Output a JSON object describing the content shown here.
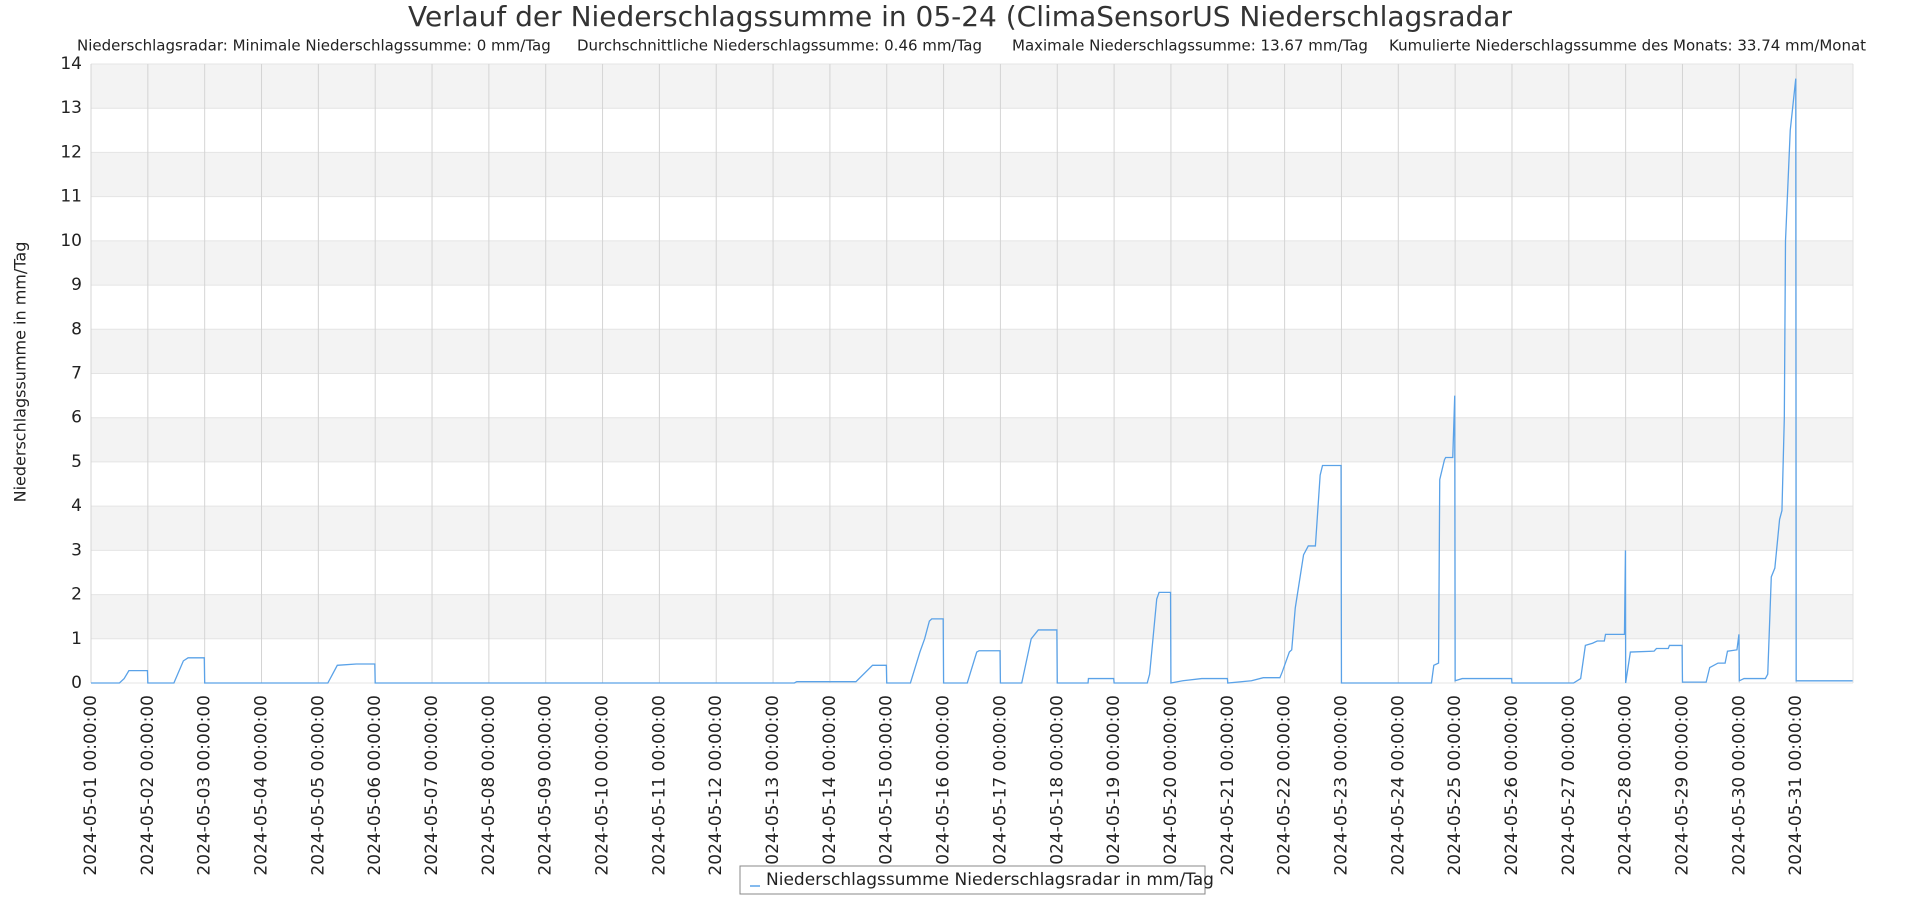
{
  "chart_data": {
    "type": "line",
    "title": "Verlauf der Niederschlagssumme in 05-24 (ClimaSensorUS Niederschlagsradar",
    "subtitle": [
      "Niederschlagsradar: Minimale Niederschlagssumme: 0 mm/Tag",
      "Durchschnittliche Niederschlagssumme: 0.46 mm/Tag",
      "Maximale Niederschlagssumme: 13.67 mm/Tag",
      "Kumulierte Niederschlagssumme des Monats: 33.74 mm/Monat"
    ],
    "y_label": "Niederschlagssumme in mm/Tag",
    "ylim": [
      0,
      14
    ],
    "yticks": [
      0,
      1,
      2,
      3,
      4,
      5,
      6,
      7,
      8,
      9,
      10,
      11,
      12,
      13,
      14
    ],
    "xlim": [
      "2024-05-01 00:00:00",
      "2024-06-01 00:00:00"
    ],
    "xticks": [
      "2024-05-01 00:00:00",
      "2024-05-02 00:00:00",
      "2024-05-03 00:00:00",
      "2024-05-04 00:00:00",
      "2024-05-05 00:00:00",
      "2024-05-06 00:00:00",
      "2024-05-07 00:00:00",
      "2024-05-08 00:00:00",
      "2024-05-09 00:00:00",
      "2024-05-10 00:00:00",
      "2024-05-11 00:00:00",
      "2024-05-12 00:00:00",
      "2024-05-13 00:00:00",
      "2024-05-14 00:00:00",
      "2024-05-15 00:00:00",
      "2024-05-16 00:00:00",
      "2024-05-17 00:00:00",
      "2024-05-18 00:00:00",
      "2024-05-19 00:00:00",
      "2024-05-20 00:00:00",
      "2024-05-21 00:00:00",
      "2024-05-22 00:00:00",
      "2024-05-23 00:00:00",
      "2024-05-24 00:00:00",
      "2024-05-25 00:00:00",
      "2024-05-26 00:00:00",
      "2024-05-27 00:00:00",
      "2024-05-28 00:00:00",
      "2024-05-29 00:00:00",
      "2024-05-30 00:00:00",
      "2024-05-31 00:00:00"
    ],
    "grid": true,
    "legend": "bottom",
    "x": [
      "2024-05-01 00:00:00",
      "2024-05-01 12:00:00",
      "2024-05-01 14:00:00",
      "2024-05-01 16:00:00",
      "2024-05-01 23:50:00",
      "2024-05-02 00:00:00",
      "2024-05-02 11:00:00",
      "2024-05-02 15:00:00",
      "2024-05-02 17:00:00",
      "2024-05-02 23:50:00",
      "2024-05-03 00:00:00",
      "2024-05-05 04:00:00",
      "2024-05-05 06:00:00",
      "2024-05-05 08:00:00",
      "2024-05-05 16:00:00",
      "2024-05-05 23:50:00",
      "2024-05-06 00:00:00",
      "2024-05-13 09:00:00",
      "2024-05-13 10:00:00",
      "2024-05-14 11:00:00",
      "2024-05-14 18:00:00",
      "2024-05-14 23:50:00",
      "2024-05-15 00:00:00",
      "2024-05-15 10:00:00",
      "2024-05-15 14:00:00",
      "2024-05-15 16:00:00",
      "2024-05-15 18:00:00",
      "2024-05-15 19:00:00",
      "2024-05-15 23:50:00",
      "2024-05-16 00:00:00",
      "2024-05-16 10:00:00",
      "2024-05-16 14:00:00",
      "2024-05-16 15:00:00",
      "2024-05-16 23:50:00",
      "2024-05-17 00:00:00",
      "2024-05-17 09:00:00",
      "2024-05-17 13:00:00",
      "2024-05-17 16:00:00",
      "2024-05-17 23:50:00",
      "2024-05-18 00:00:00",
      "2024-05-18 13:00:00",
      "2024-05-18 13:10:00",
      "2024-05-18 23:50:00",
      "2024-05-19 00:00:00",
      "2024-05-19 14:00:00",
      "2024-05-19 15:00:00",
      "2024-05-19 18:00:00",
      "2024-05-19 19:00:00",
      "2024-05-19 23:50:00",
      "2024-05-20 00:00:00",
      "2024-05-20 05:00:00",
      "2024-05-20 13:00:00",
      "2024-05-20 23:50:00",
      "2024-05-21 00:00:00",
      "2024-05-21 10:00:00",
      "2024-05-21 15:00:00",
      "2024-05-21 22:00:00",
      "2024-05-21 23:00:00",
      "2024-05-22 02:00:00",
      "2024-05-22 03:00:00",
      "2024-05-22 04:30:00",
      "2024-05-22 08:00:00",
      "2024-05-22 10:00:00",
      "2024-05-22 13:00:00",
      "2024-05-22 15:00:00",
      "2024-05-22 16:00:00",
      "2024-05-22 23:50:00",
      "2024-05-23 00:00:00",
      "2024-05-24 14:00:00",
      "2024-05-24 15:00:00",
      "2024-05-24 17:00:00",
      "2024-05-24 17:30:00",
      "2024-05-24 19:30:00",
      "2024-05-24 20:00:00",
      "2024-05-24 23:00:00",
      "2024-05-24 23:50:00",
      "2024-05-25 00:00:00",
      "2024-05-25 03:00:00",
      "2024-05-25 23:50:00",
      "2024-05-26 00:00:00",
      "2024-05-27 02:00:00",
      "2024-05-27 05:00:00",
      "2024-05-27 07:00:00",
      "2024-05-27 10:00:00",
      "2024-05-27 12:00:00",
      "2024-05-27 15:00:00",
      "2024-05-27 15:30:00",
      "2024-05-27 23:30:00",
      "2024-05-27 23:55:00",
      "2024-05-28 00:00:00",
      "2024-05-28 02:00:00",
      "2024-05-28 12:00:00",
      "2024-05-28 13:00:00",
      "2024-05-28 18:00:00",
      "2024-05-28 18:30:00",
      "2024-05-28 23:50:00",
      "2024-05-29 00:00:00",
      "2024-05-29 10:00:00",
      "2024-05-29 11:30:00",
      "2024-05-29 15:00:00",
      "2024-05-29 18:00:00",
      "2024-05-29 19:00:00",
      "2024-05-29 23:00:00",
      "2024-05-29 23:50:00",
      "2024-05-30 00:00:00",
      "2024-05-30 02:00:00",
      "2024-05-30 11:00:00",
      "2024-05-30 12:00:00",
      "2024-05-30 13:30:00",
      "2024-05-30 15:00:00",
      "2024-05-30 17:00:00",
      "2024-05-30 18:00:00",
      "2024-05-30 19:00:00",
      "2024-05-30 19:30:00",
      "2024-05-30 21:30:00",
      "2024-05-30 22:30:00",
      "2024-05-30 23:50:00",
      "2024-05-31 00:00:00",
      "2024-05-31 23:50:00"
    ],
    "series": [
      {
        "name": "Niederschlagssumme Niederschlagsradar in mm/Tag",
        "color": "#5aa2e8",
        "values": [
          0,
          0,
          0.1,
          0.28,
          0.28,
          0,
          0,
          0.5,
          0.57,
          0.57,
          0,
          0,
          0.2,
          0.4,
          0.43,
          0.43,
          0,
          0,
          0.03,
          0.03,
          0.4,
          0.4,
          0,
          0,
          0.7,
          1.0,
          1.4,
          1.45,
          1.45,
          0,
          0,
          0.7,
          0.73,
          0.73,
          0,
          0,
          1.0,
          1.2,
          1.2,
          0,
          0,
          0.1,
          0.1,
          0,
          0,
          0.2,
          1.9,
          2.05,
          2.05,
          0,
          0.05,
          0.1,
          0.1,
          0,
          0.05,
          0.12,
          0.12,
          0.25,
          0.7,
          0.75,
          1.7,
          2.9,
          3.1,
          3.1,
          4.7,
          4.92,
          4.92,
          0,
          0,
          0.4,
          0.45,
          4.6,
          5.05,
          5.1,
          5.1,
          6.5,
          0.05,
          0.1,
          0.1,
          0,
          0,
          0.1,
          0.85,
          0.9,
          0.95,
          0.95,
          1.1,
          1.1,
          3.0,
          0,
          0.7,
          0.72,
          0.78,
          0.78,
          0.85,
          0.85,
          0.02,
          0.02,
          0.35,
          0.45,
          0.45,
          0.72,
          0.75,
          1.1,
          0.05,
          0.1,
          0.1,
          0.2,
          2.4,
          2.6,
          3.7,
          3.9,
          6,
          10,
          12.5,
          13,
          13.67,
          0.05,
          0.05
        ]
      }
    ]
  }
}
